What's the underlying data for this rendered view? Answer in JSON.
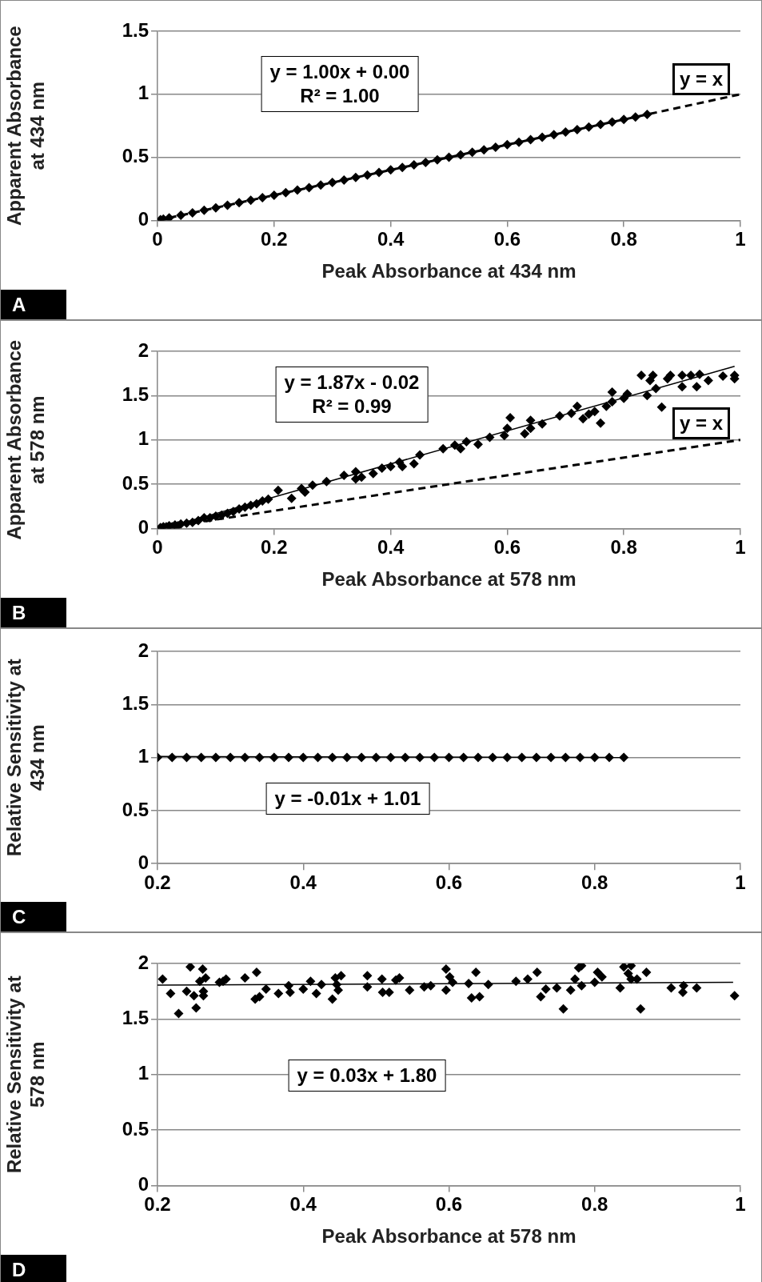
{
  "chart_data": [
    {
      "type": "scatter",
      "xlabel": "Peak Absorbance at 434 nm",
      "ylabel": "Apparent Absorbance\nat 434 nm",
      "xlim": [
        0,
        1
      ],
      "xticks": [
        0,
        0.2,
        0.4,
        0.6,
        0.8,
        1
      ],
      "ylim": [
        0,
        1.5
      ],
      "yticks": [
        0,
        0.5,
        1,
        1.5
      ],
      "grid": "y",
      "legend": false,
      "marker": "diamond",
      "series": [
        {
          "color": "#000000",
          "x": [
            0.005,
            0.01,
            0.02,
            0.04,
            0.06,
            0.08,
            0.1,
            0.12,
            0.14,
            0.16,
            0.18,
            0.2,
            0.22,
            0.24,
            0.26,
            0.28,
            0.3,
            0.32,
            0.34,
            0.36,
            0.38,
            0.4,
            0.42,
            0.44,
            0.46,
            0.48,
            0.5,
            0.52,
            0.54,
            0.56,
            0.58,
            0.6,
            0.62,
            0.64,
            0.66,
            0.68,
            0.7,
            0.72,
            0.74,
            0.76,
            0.78,
            0.8,
            0.82,
            0.84
          ],
          "values": [
            0.005,
            0.01,
            0.02,
            0.04,
            0.06,
            0.08,
            0.1,
            0.12,
            0.14,
            0.16,
            0.18,
            0.2,
            0.22,
            0.24,
            0.26,
            0.28,
            0.3,
            0.32,
            0.34,
            0.36,
            0.38,
            0.4,
            0.42,
            0.44,
            0.46,
            0.48,
            0.5,
            0.52,
            0.54,
            0.56,
            0.58,
            0.6,
            0.62,
            0.64,
            0.66,
            0.68,
            0.7,
            0.72,
            0.74,
            0.76,
            0.78,
            0.8,
            0.82,
            0.84
          ]
        },
        {
          "type": "line",
          "color": "#000000",
          "marker": "none",
          "line_style": "dashed",
          "x": [
            0,
            1
          ],
          "values": [
            0,
            1
          ]
        }
      ],
      "annotations": [
        "y = 1.00x + 0.00\nR² = 1.00",
        "y = x",
        "A"
      ]
    },
    {
      "type": "scatter",
      "xlabel": "Peak Absorbance at 578 nm",
      "ylabel": "Apparent Absorbance\nat 578 nm",
      "xlim": [
        0,
        1
      ],
      "xticks": [
        0,
        0.2,
        0.4,
        0.6,
        0.8,
        1
      ],
      "ylim": [
        0,
        2
      ],
      "yticks": [
        0,
        0.5,
        1,
        1.5,
        2
      ],
      "grid": "y",
      "legend": false,
      "marker": "diamond",
      "series": [
        {
          "color": "#000000",
          "x": [
            0.005,
            0.01,
            0.015,
            0.02,
            0.025,
            0.03,
            0.035,
            0.04,
            0.05,
            0.06,
            0.07,
            0.08,
            0.09,
            0.1,
            0.11,
            0.12,
            0.13,
            0.14,
            0.15,
            0.16,
            0.17,
            0.18,
            0.19,
            0.207,
            0.23,
            0.247,
            0.253,
            0.266,
            0.29,
            0.32,
            0.34,
            0.34,
            0.35,
            0.37,
            0.385,
            0.4,
            0.415,
            0.42,
            0.44,
            0.45,
            0.49,
            0.51,
            0.52,
            0.53,
            0.55,
            0.57,
            0.595,
            0.6,
            0.605,
            0.63,
            0.64,
            0.64,
            0.66,
            0.69,
            0.71,
            0.72,
            0.73,
            0.74,
            0.75,
            0.76,
            0.77,
            0.78,
            0.78,
            0.8,
            0.806,
            0.83,
            0.84,
            0.845,
            0.85,
            0.855,
            0.865,
            0.875,
            0.88,
            0.9,
            0.9,
            0.915,
            0.925,
            0.93,
            0.945,
            0.97,
            0.99,
            0.99
          ],
          "values": [
            0.01,
            0.02,
            0.02,
            0.03,
            0.02,
            0.04,
            0.03,
            0.05,
            0.06,
            0.07,
            0.09,
            0.12,
            0.12,
            0.14,
            0.15,
            0.17,
            0.19,
            0.22,
            0.24,
            0.26,
            0.28,
            0.31,
            0.33,
            0.43,
            0.34,
            0.45,
            0.41,
            0.49,
            0.53,
            0.6,
            0.64,
            0.56,
            0.58,
            0.62,
            0.68,
            0.7,
            0.75,
            0.7,
            0.73,
            0.83,
            0.9,
            0.94,
            0.9,
            0.98,
            0.95,
            1.03,
            1.05,
            1.13,
            1.25,
            1.07,
            1.22,
            1.13,
            1.18,
            1.27,
            1.3,
            1.38,
            1.24,
            1.29,
            1.32,
            1.19,
            1.38,
            1.43,
            1.54,
            1.47,
            1.52,
            1.73,
            1.5,
            1.67,
            1.73,
            1.58,
            1.37,
            1.69,
            1.73,
            1.73,
            1.6,
            1.73,
            1.6,
            1.74,
            1.67,
            1.72,
            1.73,
            1.69
          ]
        },
        {
          "type": "line",
          "color": "#000000",
          "marker": "none",
          "line_style": "solid",
          "x": [
            0.02,
            0.99
          ],
          "values": [
            0.02,
            1.83
          ]
        },
        {
          "type": "line",
          "color": "#000000",
          "marker": "none",
          "line_style": "dashed",
          "x": [
            0,
            1
          ],
          "values": [
            0,
            1
          ]
        }
      ],
      "annotations": [
        "y = 1.87x - 0.02\nR² = 0.99",
        "y = x",
        "B"
      ]
    },
    {
      "type": "scatter",
      "ylabel": "Relative Sensitivity at\n434 nm",
      "xlim": [
        0.2,
        1
      ],
      "xticks": [
        0.2,
        0.4,
        0.6,
        0.8,
        1
      ],
      "ylim": [
        0,
        2
      ],
      "yticks": [
        0,
        0.5,
        1,
        1.5,
        2
      ],
      "grid": "y",
      "legend": false,
      "marker": "diamond",
      "series": [
        {
          "color": "#000000",
          "x": [
            0.2,
            0.22,
            0.24,
            0.26,
            0.28,
            0.3,
            0.32,
            0.34,
            0.36,
            0.38,
            0.4,
            0.42,
            0.44,
            0.46,
            0.48,
            0.5,
            0.52,
            0.54,
            0.56,
            0.58,
            0.6,
            0.62,
            0.64,
            0.66,
            0.68,
            0.7,
            0.72,
            0.74,
            0.76,
            0.78,
            0.8,
            0.82,
            0.84
          ],
          "values": [
            1,
            1,
            1,
            1,
            1,
            1,
            1,
            1,
            1,
            1,
            1,
            1,
            1,
            1,
            1,
            1,
            1,
            1,
            1,
            1,
            1,
            1,
            1,
            1,
            1,
            1,
            1,
            1,
            1,
            1,
            1,
            1,
            1
          ]
        },
        {
          "type": "line",
          "color": "#000000",
          "marker": "none",
          "line_style": "solid",
          "x": [
            0.2,
            0.84
          ],
          "values": [
            1.01,
            1
          ]
        }
      ],
      "annotations": [
        "y = -0.01x + 1.01",
        "C"
      ]
    },
    {
      "type": "scatter",
      "xlabel": "Peak Absorbance at 578 nm",
      "ylabel": "Relative Sensitivity at\n578 nm",
      "xlim": [
        0.2,
        1
      ],
      "xticks": [
        0.2,
        0.4,
        0.6,
        0.8,
        1
      ],
      "ylim": [
        0,
        2
      ],
      "yticks": [
        0,
        0.5,
        1,
        1.5,
        2
      ],
      "grid": "y",
      "legend": false,
      "marker": "diamond",
      "series": [
        {
          "color": "#000000",
          "x": [
            0.207,
            0.218,
            0.229,
            0.24,
            0.245,
            0.25,
            0.253,
            0.258,
            0.262,
            0.263,
            0.263,
            0.266,
            0.285,
            0.29,
            0.294,
            0.32,
            0.336,
            0.334,
            0.34,
            0.349,
            0.366,
            0.38,
            0.382,
            0.4,
            0.41,
            0.418,
            0.425,
            0.44,
            0.444,
            0.446,
            0.448,
            0.452,
            0.488,
            0.488,
            0.508,
            0.509,
            0.518,
            0.527,
            0.532,
            0.546,
            0.566,
            0.575,
            0.596,
            0.596,
            0.601,
            0.605,
            0.627,
            0.631,
            0.637,
            0.642,
            0.654,
            0.692,
            0.708,
            0.721,
            0.726,
            0.733,
            0.748,
            0.757,
            0.767,
            0.773,
            0.778,
            0.782,
            0.782,
            0.8,
            0.804,
            0.81,
            0.835,
            0.84,
            0.846,
            0.85,
            0.85,
            0.858,
            0.863,
            0.871,
            0.905,
            0.921,
            0.922,
            0.94,
            0.992
          ],
          "values": [
            1.86,
            1.73,
            1.55,
            1.75,
            1.97,
            1.71,
            1.6,
            1.84,
            1.95,
            1.75,
            1.71,
            1.87,
            1.83,
            1.84,
            1.86,
            1.87,
            1.92,
            1.68,
            1.7,
            1.77,
            1.73,
            1.8,
            1.74,
            1.77,
            1.84,
            1.73,
            1.81,
            1.68,
            1.87,
            1.81,
            1.76,
            1.89,
            1.89,
            1.79,
            1.86,
            1.74,
            1.74,
            1.85,
            1.87,
            1.76,
            1.79,
            1.8,
            1.95,
            1.76,
            1.88,
            1.83,
            1.82,
            1.69,
            1.92,
            1.7,
            1.81,
            1.84,
            1.86,
            1.92,
            1.7,
            1.77,
            1.78,
            1.59,
            1.76,
            1.86,
            1.96,
            1.98,
            1.8,
            1.83,
            1.92,
            1.88,
            1.78,
            1.97,
            1.91,
            1.98,
            1.86,
            1.86,
            1.59,
            1.92,
            1.78,
            1.74,
            1.8,
            1.78,
            1.71
          ]
        },
        {
          "type": "line",
          "color": "#000000",
          "marker": "none",
          "line_style": "solid",
          "x": [
            0.2,
            0.99
          ],
          "values": [
            1.806,
            1.83
          ]
        }
      ],
      "annotations": [
        "y = 0.03x + 1.80",
        "D"
      ]
    }
  ]
}
